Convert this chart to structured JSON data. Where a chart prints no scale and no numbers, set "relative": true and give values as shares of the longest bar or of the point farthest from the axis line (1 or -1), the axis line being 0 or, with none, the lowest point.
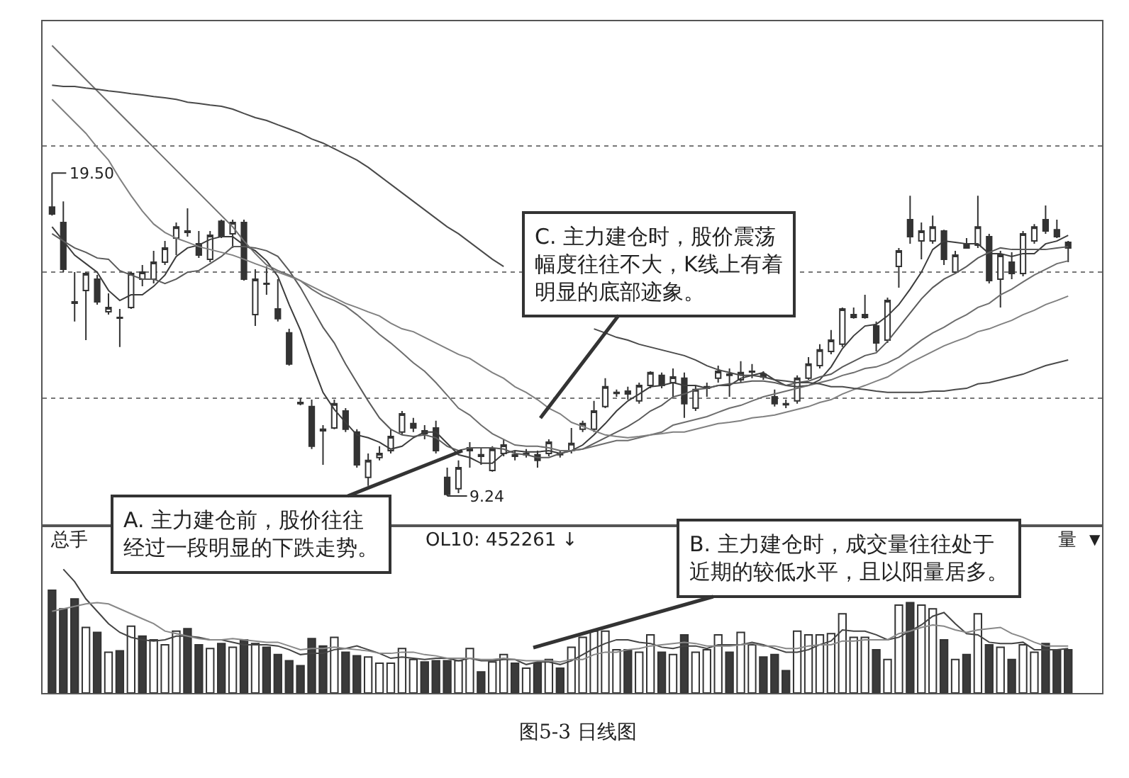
{
  "chart_data": [
    {
      "type": "candlestick",
      "categories": [
        null,
        null,
        null,
        null,
        null,
        null,
        null,
        null,
        null,
        null,
        null,
        null,
        null,
        null,
        null,
        null,
        null,
        null,
        null,
        null,
        null,
        null,
        null,
        null,
        null,
        null,
        null,
        null,
        null,
        null,
        null,
        null,
        null,
        null,
        null,
        null,
        null,
        null,
        null,
        null,
        null,
        null,
        null,
        null,
        null,
        null,
        null,
        null,
        null,
        null,
        null,
        null,
        null,
        null,
        null,
        null,
        null,
        null,
        null,
        null,
        null,
        null,
        null,
        null,
        null,
        null,
        null,
        null,
        null,
        null,
        null,
        null,
        null,
        null,
        null,
        null,
        null,
        null,
        null,
        null,
        null,
        null,
        null,
        null,
        null,
        null,
        null,
        null,
        null,
        null,
        null
      ],
      "ohlc": [
        [
          18.42,
          19.5,
          18.15,
          18.2
        ],
        [
          17.93,
          18.6,
          16.35,
          16.44
        ],
        [
          15.36,
          16.35,
          14.78,
          15.41
        ],
        [
          15.77,
          16.35,
          14.19,
          16.31
        ],
        [
          16.13,
          16.26,
          15.32,
          15.41
        ],
        [
          15.09,
          15.68,
          15.0,
          15.23
        ],
        [
          14.89,
          15.18,
          13.97,
          14.91
        ],
        [
          15.23,
          16.35,
          15.18,
          16.31
        ],
        [
          16.13,
          16.58,
          15.9,
          16.35
        ],
        [
          16.13,
          17.03,
          15.99,
          16.67
        ],
        [
          16.67,
          17.34,
          16.58,
          17.12
        ],
        [
          17.43,
          17.93,
          16.89,
          17.79
        ],
        [
          17.61,
          18.38,
          17.48,
          17.66
        ],
        [
          17.25,
          17.66,
          16.8,
          16.89
        ],
        [
          16.76,
          17.66,
          16.67,
          17.52
        ],
        [
          17.97,
          18.02,
          17.43,
          17.48
        ],
        [
          17.57,
          18.02,
          17.12,
          17.93
        ],
        [
          17.93,
          18.02,
          16.08,
          16.13
        ],
        [
          15.0,
          16.44,
          14.64,
          16.13
        ],
        [
          15.97,
          16.53,
          15.63,
          15.99
        ],
        [
          15.18,
          16.13,
          14.78,
          14.87
        ],
        [
          14.42,
          14.55,
          13.38,
          13.43
        ],
        [
          12.21,
          12.35,
          12.12,
          12.17
        ],
        [
          12.08,
          12.3,
          10.73,
          10.82
        ],
        [
          11.31,
          11.49,
          10.23,
          11.36
        ],
        [
          11.4,
          12.3,
          11.36,
          12.17
        ],
        [
          11.94,
          12.03,
          11.27,
          11.36
        ],
        [
          11.27,
          11.36,
          10.14,
          10.23
        ],
        [
          9.83,
          10.59,
          9.56,
          10.37
        ],
        [
          10.46,
          10.82,
          10.37,
          10.59
        ],
        [
          10.68,
          11.36,
          10.59,
          11.13
        ],
        [
          11.27,
          11.94,
          11.18,
          11.85
        ],
        [
          11.54,
          11.72,
          11.27,
          11.4
        ],
        [
          11.22,
          11.49,
          11.04,
          11.31
        ],
        [
          11.4,
          11.63,
          10.59,
          10.68
        ],
        [
          9.83,
          10.14,
          9.24,
          9.29
        ],
        [
          9.47,
          10.37,
          9.33,
          10.14
        ],
        [
          10.68,
          10.95,
          10.14,
          10.77
        ],
        [
          10.5,
          10.77,
          10.23,
          10.55
        ],
        [
          10.05,
          10.82,
          10.01,
          10.73
        ],
        [
          10.59,
          11.04,
          10.5,
          10.86
        ],
        [
          10.5,
          10.68,
          10.37,
          10.55
        ],
        [
          10.55,
          10.73,
          10.46,
          10.59
        ],
        [
          10.55,
          10.68,
          10.14,
          10.37
        ],
        [
          10.59,
          11.04,
          10.5,
          10.95
        ],
        [
          10.55,
          10.68,
          10.46,
          10.59
        ],
        [
          10.68,
          11.4,
          10.59,
          10.91
        ],
        [
          11.36,
          11.63,
          11.27,
          11.54
        ],
        [
          11.36,
          12.26,
          11.27,
          11.94
        ],
        [
          12.08,
          12.98,
          12.03,
          12.71
        ],
        [
          12.5,
          12.62,
          12.39,
          12.53
        ],
        [
          12.57,
          12.71,
          12.3,
          12.48
        ],
        [
          12.26,
          12.84,
          12.17,
          12.75
        ],
        [
          12.75,
          13.2,
          12.66,
          13.16
        ],
        [
          13.07,
          13.16,
          12.66,
          12.75
        ],
        [
          12.84,
          13.29,
          12.39,
          13.02
        ],
        [
          12.98,
          13.16,
          11.72,
          12.17
        ],
        [
          12.03,
          12.75,
          11.94,
          12.62
        ],
        [
          12.66,
          12.84,
          12.39,
          12.71
        ],
        [
          12.98,
          13.38,
          12.84,
          13.2
        ],
        [
          13.07,
          13.29,
          12.39,
          13.11
        ],
        [
          12.93,
          13.52,
          12.84,
          13.16
        ],
        [
          13.18,
          13.43,
          12.98,
          13.2
        ],
        [
          13.11,
          13.2,
          12.93,
          13.02
        ],
        [
          12.39,
          12.62,
          12.08,
          12.17
        ],
        [
          12.14,
          12.3,
          12.03,
          12.17
        ],
        [
          12.26,
          13.07,
          12.17,
          12.98
        ],
        [
          12.98,
          13.65,
          12.93,
          13.43
        ],
        [
          13.38,
          14.06,
          13.29,
          13.88
        ],
        [
          13.83,
          14.51,
          13.74,
          14.19
        ],
        [
          14.06,
          15.23,
          13.97,
          15.18
        ],
        [
          14.91,
          15.23,
          14.87,
          15.0
        ],
        [
          14.91,
          15.63,
          14.87,
          15.0
        ],
        [
          14.64,
          14.78,
          13.83,
          14.1
        ],
        [
          14.19,
          15.54,
          14.1,
          15.45
        ],
        [
          16.53,
          17.12,
          15.86,
          17.03
        ],
        [
          18.02,
          18.78,
          17.25,
          17.48
        ],
        [
          17.34,
          17.93,
          16.76,
          17.66
        ],
        [
          17.34,
          18.15,
          17.25,
          17.79
        ],
        [
          17.66,
          17.7,
          16.58,
          16.76
        ],
        [
          16.35,
          17.03,
          16.31,
          16.89
        ],
        [
          17.25,
          17.43,
          17.12,
          17.12
        ],
        [
          17.21,
          18.78,
          17.12,
          17.79
        ],
        [
          17.48,
          17.57,
          15.99,
          16.08
        ],
        [
          16.13,
          17.03,
          15.23,
          16.89
        ],
        [
          16.67,
          16.98,
          16.13,
          16.31
        ],
        [
          16.31,
          17.66,
          16.22,
          17.57
        ],
        [
          17.34,
          17.88,
          17.25,
          17.79
        ],
        [
          18.02,
          18.47,
          17.57,
          17.66
        ],
        [
          17.7,
          18.02,
          17.43,
          17.48
        ],
        [
          17.3,
          17.34,
          16.67,
          17.12
        ]
      ],
      "color": "#333333",
      "series": [
        {
          "type": "line",
          "color": "#3c3c3c",
          "values": [
            17.79,
            17.34,
            16.89,
            16.62,
            16.35,
            15.77,
            15.45,
            15.63,
            15.63,
            15.9,
            16.26,
            16.85,
            17.12,
            17.21,
            17.39,
            17.48,
            17.48,
            17.21,
            17.03,
            16.71,
            16.22,
            15.32,
            14.51,
            13.47,
            12.53,
            11.99,
            11.58,
            11.18,
            11.09,
            10.95,
            10.73,
            10.82,
            11.09,
            11.27,
            11.27,
            10.91,
            10.55,
            10.46,
            10.28,
            10.28,
            10.59,
            10.68,
            10.64,
            10.64,
            10.68,
            10.59,
            10.68,
            10.86,
            11.18,
            11.54,
            11.94,
            12.26,
            12.48,
            12.71,
            12.75,
            12.84,
            12.75,
            12.75,
            12.66,
            12.75,
            12.75,
            12.98,
            13.07,
            13.16,
            12.93,
            12.75,
            12.71,
            12.75,
            12.93,
            13.34,
            13.92,
            14.33,
            14.64,
            14.69,
            14.96,
            15.32,
            15.81,
            16.35,
            17.07,
            17.34,
            17.3,
            17.25,
            17.25,
            16.94,
            16.94,
            16.85,
            16.94,
            16.94,
            17.25,
            17.34,
            17.52
          ]
        },
        {
          "type": "line",
          "color": "#5a5a5a",
          "values": [
            17.57,
            17.34,
            17.12,
            16.98,
            16.8,
            16.76,
            16.4,
            16.26,
            16.13,
            16.13,
            15.99,
            16.13,
            16.35,
            16.4,
            16.62,
            16.85,
            17.16,
            17.16,
            17.12,
            17.03,
            16.85,
            16.4,
            15.86,
            15.23,
            14.6,
            14.1,
            13.43,
            12.84,
            12.26,
            11.72,
            11.36,
            11.18,
            11.13,
            11.18,
            11.09,
            10.82,
            10.68,
            10.77,
            10.77,
            10.77,
            10.73,
            10.59,
            10.55,
            10.46,
            10.46,
            10.59,
            10.68,
            10.73,
            10.91,
            11.09,
            11.27,
            11.45,
            11.67,
            11.94,
            12.12,
            12.39,
            12.48,
            12.62,
            12.66,
            12.75,
            12.8,
            12.84,
            12.89,
            12.89,
            12.84,
            12.75,
            12.84,
            12.89,
            13.02,
            13.11,
            13.34,
            13.52,
            13.7,
            13.79,
            14.15,
            14.6,
            15.05,
            15.5,
            15.86,
            16.13,
            16.31,
            16.53,
            16.8,
            16.98,
            17.12,
            17.07,
            17.07,
            17.07,
            17.07,
            17.12,
            17.16
          ]
        },
        {
          "type": "line",
          "color": "#6e6e6e",
          "values": [
            23.55,
            23.19,
            22.83,
            22.47,
            22.11,
            21.75,
            21.39,
            21.03,
            20.67,
            20.31,
            19.95,
            19.59,
            19.23,
            18.87,
            18.51,
            18.15,
            17.79,
            17.34,
            16.94,
            16.58,
            16.4,
            16.26,
            16.08,
            15.81,
            15.59,
            15.45,
            15.27,
            15.0,
            14.69,
            14.37,
            14.1,
            13.79,
            13.47,
            13.2,
            12.84,
            12.44,
            12.03,
            11.81,
            11.49,
            11.22,
            11.04,
            10.86,
            10.82,
            10.82,
            10.77,
            10.68,
            10.68,
            10.73,
            10.82,
            10.91,
            11.0,
            11.0,
            11.09,
            11.18,
            11.27,
            11.49,
            11.58,
            11.67,
            11.76,
            11.9,
            12.03,
            12.12,
            12.26,
            12.39,
            12.48,
            12.57,
            12.66,
            12.75,
            12.84,
            12.93,
            13.07,
            13.16,
            13.29,
            13.34,
            13.47,
            13.65,
            13.92,
            14.19,
            14.42,
            14.6,
            14.82,
            15.0,
            15.23,
            15.36,
            15.63,
            15.81,
            16.04,
            16.26,
            16.44,
            16.62,
            16.71
          ]
        },
        {
          "type": "line",
          "color": "#808080",
          "values": [
            21.84,
            21.48,
            21.12,
            20.76,
            20.31,
            19.91,
            19.32,
            18.78,
            18.29,
            17.88,
            17.61,
            17.43,
            17.3,
            17.16,
            17.07,
            16.98,
            16.89,
            16.76,
            16.62,
            16.49,
            16.35,
            16.22,
            16.08,
            15.9,
            15.72,
            15.54,
            15.36,
            15.23,
            15.09,
            14.96,
            14.73,
            14.55,
            14.46,
            14.28,
            14.1,
            13.92,
            13.74,
            13.61,
            13.38,
            13.16,
            12.98,
            12.71,
            12.53,
            12.3,
            12.03,
            11.85,
            11.58,
            11.45,
            11.31,
            11.18,
            11.13,
            11.09,
            11.13,
            11.18,
            11.22,
            11.27,
            11.27,
            11.36,
            11.45,
            11.54,
            11.58,
            11.63,
            11.72,
            11.76,
            11.81,
            11.9,
            11.99,
            12.08,
            12.21,
            12.3,
            12.48,
            12.62,
            12.75,
            12.89,
            13.02,
            13.25,
            13.47,
            13.65,
            13.83,
            14.01,
            14.15,
            14.28,
            14.46,
            14.55,
            14.69,
            14.82,
            15.0,
            15.14,
            15.32,
            15.45,
            15.59
          ]
        },
        {
          "type": "line",
          "color": "#4a4a4a",
          "values": [
            22.29,
            22.25,
            22.25,
            22.2,
            22.16,
            22.11,
            22.07,
            22.02,
            21.98,
            21.93,
            21.89,
            21.84,
            21.75,
            21.71,
            21.66,
            21.62,
            21.53,
            21.39,
            21.26,
            21.17,
            21.03,
            20.9,
            20.76,
            20.58,
            20.45,
            20.27,
            20.09,
            19.91,
            19.68,
            19.41,
            19.14,
            18.87,
            18.6,
            18.33,
            18.06,
            17.79,
            17.57,
            17.3,
            17.03,
            16.76,
            16.53,
            null,
            null,
            null,
            null,
            null,
            null,
            null,
            14.55,
            14.42,
            14.28,
            14.19,
            14.06,
            13.97,
            13.88,
            13.79,
            13.7,
            13.56,
            13.38,
            13.25,
            13.16,
            13.07,
            13.07,
            13.02,
            12.93,
            12.89,
            12.84,
            12.84,
            12.8,
            12.71,
            12.71,
            12.66,
            12.62,
            12.57,
            12.53,
            12.53,
            12.53,
            12.53,
            12.57,
            12.57,
            12.62,
            12.66,
            12.8,
            12.84,
            12.93,
            13.02,
            13.11,
            13.25,
            13.38,
            13.47,
            13.56
          ]
        }
      ],
      "ylim": [
        8.34,
        24.32
      ],
      "yticks": [
        {
          "value": 12.35,
          "label": null
        },
        {
          "value": 16.35,
          "label": null
        },
        {
          "value": 20.36,
          "label": null
        }
      ],
      "grid": "y",
      "marker": "none",
      "annotations": [
        "19.50",
        "9.24",
        "A. 主力建仓前，股价往往经过一段明显的下跌走势。",
        "C. 主力建仓时，股价震荡幅度往往不大，K线上有着明显的底部迹象。"
      ]
    },
    {
      "type": "bar",
      "relative": true,
      "categories": [
        null,
        null,
        null,
        null,
        null,
        null,
        null,
        null,
        null,
        null,
        null,
        null,
        null,
        null,
        null,
        null,
        null,
        null,
        null,
        null,
        null,
        null,
        null,
        null,
        null,
        null,
        null,
        null,
        null,
        null,
        null,
        null,
        null,
        null,
        null,
        null,
        null,
        null,
        null,
        null,
        null,
        null,
        null,
        null,
        null,
        null,
        null,
        null,
        null,
        null,
        null,
        null,
        null,
        null,
        null,
        null,
        null,
        null,
        null,
        null,
        null,
        null,
        null,
        null,
        null,
        null,
        null,
        null,
        null,
        null,
        null,
        null,
        null,
        null,
        null,
        null,
        null,
        null,
        null,
        null,
        null,
        null,
        null,
        null,
        null,
        null,
        null,
        null,
        null,
        null,
        null
      ],
      "color": "#333333",
      "series": [
        {
          "values": [
            0.83,
            0.68,
            0.76,
            0.53,
            0.49,
            0.33,
            0.34,
            0.54,
            0.46,
            0.43,
            0.39,
            0.5,
            0.52,
            0.39,
            0.36,
            0.4,
            0.37,
            0.43,
            0.4,
            0.37,
            0.31,
            0.26,
            0.22,
            0.44,
            0.38,
            0.45,
            0.33,
            0.3,
            0.29,
            0.24,
            0.24,
            0.36,
            0.27,
            0.25,
            0.26,
            0.26,
            0.26,
            0.36,
            0.17,
            0.25,
            0.31,
            0.24,
            0.2,
            0.24,
            0.27,
            0.2,
            0.37,
            0.45,
            0.5,
            0.5,
            0.35,
            0.35,
            0.33,
            0.47,
            0.33,
            0.31,
            0.47,
            0.33,
            0.35,
            0.47,
            0.33,
            0.49,
            0.39,
            0.29,
            0.31,
            0.18,
            0.5,
            0.47,
            0.47,
            0.48,
            0.64,
            0.45,
            0.45,
            0.35,
            0.27,
            0.71,
            0.73,
            0.71,
            0.68,
            0.43,
            0.27,
            0.31,
            0.64,
            0.39,
            0.37,
            0.27,
            0.39,
            0.33,
            0.4,
            0.35,
            0.35
          ],
          "colors": [
            "#3a3a3a",
            "#3a3a3a",
            "#3a3a3a",
            "#ffffff",
            "#3a3a3a",
            "#ffffff",
            "#3a3a3a",
            "#ffffff",
            "#3a3a3a",
            "#ffffff",
            "#ffffff",
            "#ffffff",
            "#3a3a3a",
            "#3a3a3a",
            "#ffffff",
            "#3a3a3a",
            "#ffffff",
            "#3a3a3a",
            "#ffffff",
            "#3a3a3a",
            "#3a3a3a",
            "#3a3a3a",
            "#3a3a3a",
            "#3a3a3a",
            "#3a3a3a",
            "#ffffff",
            "#3a3a3a",
            "#3a3a3a",
            "#ffffff",
            "#ffffff",
            "#ffffff",
            "#ffffff",
            "#ffffff",
            "#3a3a3a",
            "#3a3a3a",
            "#3a3a3a",
            "#ffffff",
            "#ffffff",
            "#3a3a3a",
            "#ffffff",
            "#ffffff",
            "#3a3a3a",
            "#ffffff",
            "#3a3a3a",
            "#ffffff",
            "#3a3a3a",
            "#ffffff",
            "#ffffff",
            "#ffffff",
            "#ffffff",
            "#ffffff",
            "#3a3a3a",
            "#ffffff",
            "#ffffff",
            "#3a3a3a",
            "#ffffff",
            "#3a3a3a",
            "#ffffff",
            "#ffffff",
            "#ffffff",
            "#3a3a3a",
            "#ffffff",
            "#ffffff",
            "#3a3a3a",
            "#3a3a3a",
            "#3a3a3a",
            "#ffffff",
            "#ffffff",
            "#ffffff",
            "#ffffff",
            "#ffffff",
            "#ffffff",
            "#ffffff",
            "#3a3a3a",
            "#ffffff",
            "#ffffff",
            "#3a3a3a",
            "#ffffff",
            "#ffffff",
            "#3a3a3a",
            "#ffffff",
            "#3a3a3a",
            "#ffffff",
            "#3a3a3a",
            "#ffffff",
            "#3a3a3a",
            "#ffffff",
            "#ffffff",
            "#3a3a3a",
            "#3a3a3a",
            "#3a3a3a"
          ]
        },
        {
          "type": "line",
          "color": "#444444",
          "values": [
            null,
            1.0,
            0.9,
            0.76,
            0.66,
            0.56,
            0.49,
            0.45,
            0.43,
            0.42,
            0.43,
            0.46,
            0.46,
            0.45,
            0.43,
            0.43,
            0.41,
            0.39,
            0.39,
            0.39,
            0.38,
            0.35,
            0.31,
            0.32,
            0.32,
            0.35,
            0.36,
            0.38,
            0.35,
            0.32,
            0.28,
            0.29,
            0.28,
            0.27,
            0.28,
            0.28,
            0.26,
            0.28,
            0.26,
            0.26,
            0.27,
            0.27,
            0.23,
            0.25,
            0.25,
            0.23,
            0.26,
            0.31,
            0.36,
            0.4,
            0.43,
            0.43,
            0.41,
            0.4,
            0.37,
            0.36,
            0.38,
            0.38,
            0.36,
            0.39,
            0.39,
            0.39,
            0.41,
            0.39,
            0.36,
            0.33,
            0.33,
            0.35,
            0.39,
            0.42,
            0.51,
            0.5,
            0.5,
            0.47,
            0.43,
            0.45,
            0.5,
            0.55,
            0.62,
            0.65,
            0.56,
            0.48,
            0.47,
            0.41,
            0.4,
            0.4,
            0.41,
            0.35,
            0.35,
            0.35,
            0.36
          ]
        },
        {
          "type": "line",
          "color": "#888888",
          "values": [
            0.66,
            0.68,
            0.7,
            0.72,
            0.73,
            0.72,
            0.68,
            0.64,
            0.6,
            0.56,
            0.5,
            0.48,
            0.46,
            0.44,
            0.43,
            0.43,
            0.44,
            0.43,
            0.42,
            0.41,
            0.41,
            0.38,
            0.35,
            0.36,
            0.36,
            0.37,
            0.36,
            0.35,
            0.34,
            0.32,
            0.32,
            0.33,
            0.33,
            0.31,
            0.3,
            0.28,
            0.28,
            0.28,
            0.27,
            0.27,
            0.28,
            0.27,
            0.26,
            0.26,
            0.26,
            0.25,
            0.27,
            0.27,
            0.31,
            0.33,
            0.33,
            0.35,
            0.36,
            0.38,
            0.39,
            0.4,
            0.41,
            0.4,
            0.38,
            0.38,
            0.38,
            0.39,
            0.4,
            0.38,
            0.38,
            0.36,
            0.36,
            0.38,
            0.39,
            0.39,
            0.42,
            0.42,
            0.43,
            0.43,
            0.43,
            0.48,
            0.5,
            0.53,
            0.55,
            0.54,
            0.51,
            0.49,
            0.51,
            0.52,
            0.53,
            0.48,
            0.45,
            0.41,
            0.38,
            0.38,
            0.38
          ]
        }
      ],
      "marker": "none",
      "annotations": [
        "总手",
        "OL10: 452261 ↓",
        "量",
        "▼",
        "B. 主力建仓时，成交量往往处于近期的较低水平，且以阳量居多。",
        "图5-3 日线图"
      ]
    }
  ]
}
